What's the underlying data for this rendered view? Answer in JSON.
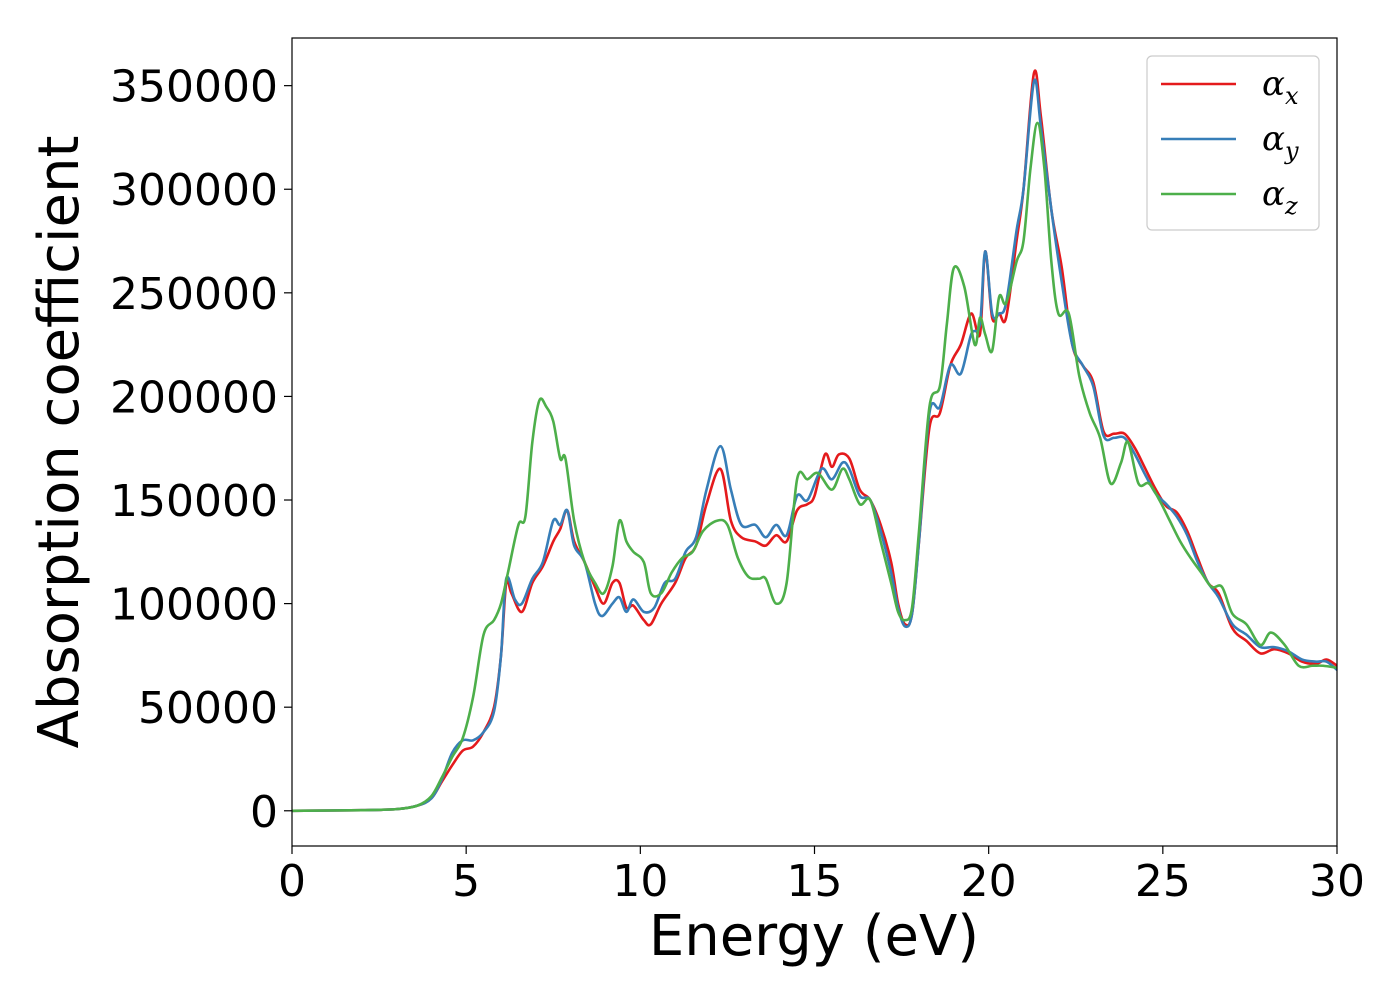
{
  "chart_data": {
    "type": "line",
    "xlabel": "Energy (eV)",
    "ylabel": "Absorption coefficient",
    "xlim": [
      0,
      30
    ],
    "ylim": [
      -17000,
      373000
    ],
    "xticks": [
      0,
      5,
      10,
      15,
      20,
      25,
      30
    ],
    "yticks": [
      0,
      50000,
      100000,
      150000,
      200000,
      250000,
      300000,
      350000
    ],
    "grid": false,
    "legend_position": "top-right",
    "series": [
      {
        "name": "α_x",
        "symbol": "α",
        "subscript": "x",
        "color": "#e41a1c",
        "points": [
          [
            0,
            0
          ],
          [
            2,
            300
          ],
          [
            3,
            800
          ],
          [
            3.6,
            2500
          ],
          [
            4,
            6000
          ],
          [
            4.3,
            14000
          ],
          [
            4.6,
            22000
          ],
          [
            4.9,
            29000
          ],
          [
            5.2,
            31000
          ],
          [
            5.5,
            38000
          ],
          [
            5.8,
            50000
          ],
          [
            6,
            75000
          ],
          [
            6.15,
            110000
          ],
          [
            6.3,
            105000
          ],
          [
            6.6,
            96000
          ],
          [
            6.9,
            110000
          ],
          [
            7.2,
            118000
          ],
          [
            7.5,
            130000
          ],
          [
            7.7,
            136000
          ],
          [
            7.9,
            145000
          ],
          [
            8.1,
            130000
          ],
          [
            8.4,
            120000
          ],
          [
            8.7,
            108000
          ],
          [
            8.95,
            100000
          ],
          [
            9.2,
            110000
          ],
          [
            9.4,
            110000
          ],
          [
            9.6,
            98000
          ],
          [
            9.8,
            99000
          ],
          [
            10.1,
            92000
          ],
          [
            10.3,
            90000
          ],
          [
            10.6,
            100000
          ],
          [
            11,
            110000
          ],
          [
            11.3,
            122000
          ],
          [
            11.6,
            128000
          ],
          [
            11.9,
            148000
          ],
          [
            12.3,
            165000
          ],
          [
            12.6,
            140000
          ],
          [
            12.9,
            132000
          ],
          [
            13.3,
            130000
          ],
          [
            13.6,
            128000
          ],
          [
            13.9,
            133000
          ],
          [
            14.2,
            130000
          ],
          [
            14.5,
            145000
          ],
          [
            14.8,
            148000
          ],
          [
            15,
            152000
          ],
          [
            15.3,
            172000
          ],
          [
            15.5,
            166000
          ],
          [
            15.7,
            172000
          ],
          [
            16,
            170000
          ],
          [
            16.3,
            155000
          ],
          [
            16.6,
            150000
          ],
          [
            16.9,
            138000
          ],
          [
            17.2,
            120000
          ],
          [
            17.4,
            100000
          ],
          [
            17.6,
            90000
          ],
          [
            17.8,
            95000
          ],
          [
            18,
            130000
          ],
          [
            18.3,
            185000
          ],
          [
            18.6,
            192000
          ],
          [
            18.9,
            215000
          ],
          [
            19.2,
            225000
          ],
          [
            19.5,
            240000
          ],
          [
            19.75,
            230000
          ],
          [
            19.9,
            270000
          ],
          [
            20.1,
            238000
          ],
          [
            20.3,
            240000
          ],
          [
            20.5,
            238000
          ],
          [
            20.8,
            275000
          ],
          [
            21,
            300000
          ],
          [
            21.3,
            356000
          ],
          [
            21.5,
            335000
          ],
          [
            21.8,
            290000
          ],
          [
            22.1,
            262000
          ],
          [
            22.4,
            225000
          ],
          [
            22.7,
            215000
          ],
          [
            23,
            207000
          ],
          [
            23.3,
            183000
          ],
          [
            23.6,
            182000
          ],
          [
            23.9,
            182000
          ],
          [
            24.2,
            175000
          ],
          [
            24.5,
            165000
          ],
          [
            24.8,
            155000
          ],
          [
            25.1,
            147000
          ],
          [
            25.4,
            144000
          ],
          [
            25.7,
            135000
          ],
          [
            26,
            122000
          ],
          [
            26.3,
            110000
          ],
          [
            26.6,
            105000
          ],
          [
            27,
            88000
          ],
          [
            27.4,
            82000
          ],
          [
            27.8,
            76000
          ],
          [
            28.2,
            78000
          ],
          [
            28.6,
            76000
          ],
          [
            29,
            72000
          ],
          [
            29.4,
            71000
          ],
          [
            29.7,
            73000
          ],
          [
            30,
            70000
          ]
        ]
      },
      {
        "name": "α_y",
        "symbol": "α",
        "subscript": "y",
        "color": "#377eb8",
        "points": [
          [
            0,
            0
          ],
          [
            2,
            300
          ],
          [
            3,
            800
          ],
          [
            3.6,
            2500
          ],
          [
            4,
            6000
          ],
          [
            4.3,
            15000
          ],
          [
            4.6,
            28000
          ],
          [
            4.9,
            34000
          ],
          [
            5.2,
            34000
          ],
          [
            5.5,
            38000
          ],
          [
            5.8,
            48000
          ],
          [
            6,
            75000
          ],
          [
            6.15,
            112000
          ],
          [
            6.4,
            102000
          ],
          [
            6.6,
            100000
          ],
          [
            6.9,
            112000
          ],
          [
            7.2,
            120000
          ],
          [
            7.5,
            140000
          ],
          [
            7.7,
            138000
          ],
          [
            7.9,
            145000
          ],
          [
            8.1,
            128000
          ],
          [
            8.4,
            120000
          ],
          [
            8.7,
            100000
          ],
          [
            8.9,
            94000
          ],
          [
            9.2,
            100000
          ],
          [
            9.4,
            103000
          ],
          [
            9.6,
            96000
          ],
          [
            9.8,
            102000
          ],
          [
            10.1,
            96000
          ],
          [
            10.4,
            98000
          ],
          [
            10.7,
            110000
          ],
          [
            11,
            112000
          ],
          [
            11.3,
            125000
          ],
          [
            11.6,
            132000
          ],
          [
            11.9,
            155000
          ],
          [
            12.3,
            176000
          ],
          [
            12.6,
            155000
          ],
          [
            12.9,
            138000
          ],
          [
            13.3,
            138000
          ],
          [
            13.6,
            132000
          ],
          [
            13.9,
            138000
          ],
          [
            14.2,
            133000
          ],
          [
            14.5,
            152000
          ],
          [
            14.8,
            150000
          ],
          [
            15.2,
            165000
          ],
          [
            15.5,
            160000
          ],
          [
            15.8,
            168000
          ],
          [
            16,
            165000
          ],
          [
            16.3,
            152000
          ],
          [
            16.6,
            150000
          ],
          [
            16.9,
            135000
          ],
          [
            17.2,
            115000
          ],
          [
            17.4,
            98000
          ],
          [
            17.6,
            89000
          ],
          [
            17.8,
            95000
          ],
          [
            18,
            130000
          ],
          [
            18.3,
            192000
          ],
          [
            18.6,
            195000
          ],
          [
            18.9,
            215000
          ],
          [
            19.2,
            211000
          ],
          [
            19.5,
            230000
          ],
          [
            19.75,
            235000
          ],
          [
            19.9,
            270000
          ],
          [
            20.1,
            240000
          ],
          [
            20.3,
            240000
          ],
          [
            20.5,
            245000
          ],
          [
            20.8,
            280000
          ],
          [
            21,
            300000
          ],
          [
            21.3,
            352000
          ],
          [
            21.5,
            330000
          ],
          [
            21.8,
            290000
          ],
          [
            22.1,
            255000
          ],
          [
            22.4,
            225000
          ],
          [
            22.7,
            215000
          ],
          [
            23,
            205000
          ],
          [
            23.3,
            181000
          ],
          [
            23.6,
            180000
          ],
          [
            23.9,
            180000
          ],
          [
            24.2,
            172000
          ],
          [
            24.5,
            162000
          ],
          [
            24.8,
            153000
          ],
          [
            25.1,
            148000
          ],
          [
            25.4,
            142000
          ],
          [
            25.7,
            133000
          ],
          [
            26,
            120000
          ],
          [
            26.3,
            110000
          ],
          [
            26.6,
            103000
          ],
          [
            27,
            90000
          ],
          [
            27.4,
            85000
          ],
          [
            27.8,
            79000
          ],
          [
            28.2,
            79000
          ],
          [
            28.6,
            77000
          ],
          [
            29,
            73000
          ],
          [
            29.4,
            72000
          ],
          [
            29.7,
            72000
          ],
          [
            30,
            68000
          ]
        ]
      },
      {
        "name": "α_z",
        "symbol": "α",
        "subscript": "z",
        "color": "#4daf4a",
        "points": [
          [
            0,
            0
          ],
          [
            2,
            300
          ],
          [
            3,
            800
          ],
          [
            3.6,
            2500
          ],
          [
            4,
            7000
          ],
          [
            4.3,
            16000
          ],
          [
            4.6,
            26000
          ],
          [
            4.9,
            35000
          ],
          [
            5.2,
            55000
          ],
          [
            5.5,
            85000
          ],
          [
            5.8,
            92000
          ],
          [
            6,
            100000
          ],
          [
            6.2,
            115000
          ],
          [
            6.5,
            138000
          ],
          [
            6.7,
            142000
          ],
          [
            6.9,
            178000
          ],
          [
            7.1,
            198000
          ],
          [
            7.3,
            195000
          ],
          [
            7.5,
            188000
          ],
          [
            7.7,
            170000
          ],
          [
            7.85,
            170000
          ],
          [
            8.1,
            140000
          ],
          [
            8.4,
            120000
          ],
          [
            8.7,
            110000
          ],
          [
            8.95,
            105000
          ],
          [
            9.2,
            118000
          ],
          [
            9.4,
            140000
          ],
          [
            9.6,
            130000
          ],
          [
            9.8,
            125000
          ],
          [
            10.1,
            120000
          ],
          [
            10.3,
            105000
          ],
          [
            10.6,
            105000
          ],
          [
            10.9,
            115000
          ],
          [
            11.2,
            122000
          ],
          [
            11.5,
            125000
          ],
          [
            11.8,
            135000
          ],
          [
            12.2,
            140000
          ],
          [
            12.5,
            138000
          ],
          [
            12.8,
            122000
          ],
          [
            13.1,
            113000
          ],
          [
            13.4,
            112000
          ],
          [
            13.6,
            112000
          ],
          [
            13.9,
            100000
          ],
          [
            14.2,
            110000
          ],
          [
            14.5,
            160000
          ],
          [
            14.8,
            160000
          ],
          [
            15.1,
            163000
          ],
          [
            15.5,
            155000
          ],
          [
            15.8,
            165000
          ],
          [
            16,
            160000
          ],
          [
            16.3,
            148000
          ],
          [
            16.6,
            150000
          ],
          [
            16.9,
            130000
          ],
          [
            17.2,
            110000
          ],
          [
            17.4,
            96000
          ],
          [
            17.6,
            92000
          ],
          [
            17.8,
            98000
          ],
          [
            18,
            135000
          ],
          [
            18.3,
            195000
          ],
          [
            18.6,
            205000
          ],
          [
            18.8,
            235000
          ],
          [
            19,
            262000
          ],
          [
            19.3,
            253000
          ],
          [
            19.6,
            225000
          ],
          [
            19.75,
            238000
          ],
          [
            19.9,
            230000
          ],
          [
            20.1,
            222000
          ],
          [
            20.3,
            248000
          ],
          [
            20.5,
            245000
          ],
          [
            20.8,
            265000
          ],
          [
            21,
            275000
          ],
          [
            21.2,
            310000
          ],
          [
            21.4,
            332000
          ],
          [
            21.6,
            310000
          ],
          [
            21.8,
            265000
          ],
          [
            22,
            240000
          ],
          [
            22.3,
            240000
          ],
          [
            22.6,
            210000
          ],
          [
            22.9,
            192000
          ],
          [
            23.2,
            180000
          ],
          [
            23.5,
            158000
          ],
          [
            23.8,
            168000
          ],
          [
            24,
            178000
          ],
          [
            24.3,
            158000
          ],
          [
            24.6,
            158000
          ],
          [
            24.9,
            150000
          ],
          [
            25.2,
            140000
          ],
          [
            25.5,
            130000
          ],
          [
            25.8,
            122000
          ],
          [
            26.1,
            115000
          ],
          [
            26.4,
            108000
          ],
          [
            26.7,
            108000
          ],
          [
            27,
            95000
          ],
          [
            27.4,
            90000
          ],
          [
            27.8,
            80000
          ],
          [
            28.1,
            86000
          ],
          [
            28.5,
            80000
          ],
          [
            28.9,
            70000
          ],
          [
            29.3,
            70000
          ],
          [
            29.6,
            70000
          ],
          [
            30,
            69000
          ]
        ]
      }
    ]
  }
}
